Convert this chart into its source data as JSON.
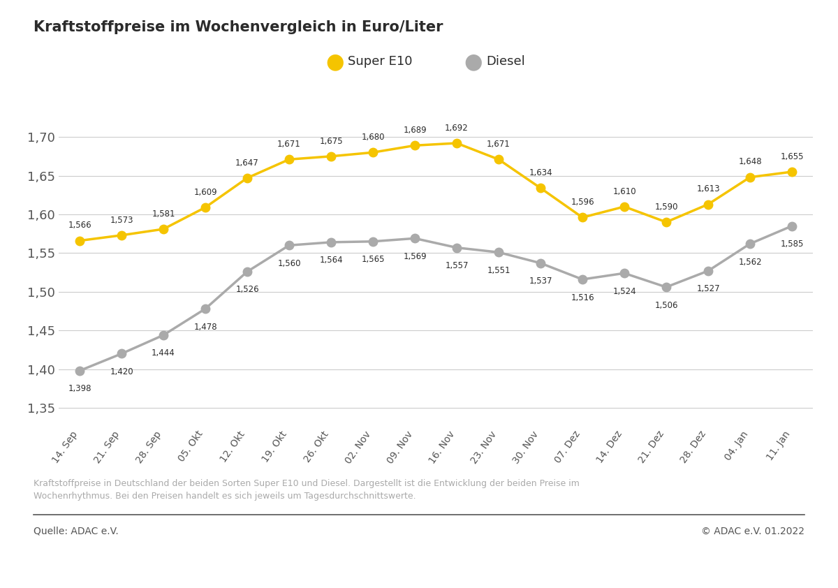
{
  "title": "Kraftstoffpreise im Wochenvergleich in Euro/Liter",
  "x_labels": [
    "14. Sep",
    "21. Sep",
    "28. Sep",
    "05. Okt",
    "12. Okt",
    "19. Okt",
    "26. Okt",
    "02. Nov",
    "09. Nov",
    "16. Nov",
    "23. Nov",
    "30. Nov",
    "07. Dez",
    "14. Dez",
    "21. Dez",
    "28. Dez",
    "04. Jan",
    "11. Jan"
  ],
  "super_e10": [
    1.566,
    1.573,
    1.581,
    1.609,
    1.647,
    1.671,
    1.675,
    1.68,
    1.689,
    1.692,
    1.671,
    1.634,
    1.596,
    1.61,
    1.59,
    1.613,
    1.648,
    1.655
  ],
  "diesel": [
    1.398,
    1.42,
    1.444,
    1.478,
    1.526,
    1.56,
    1.564,
    1.565,
    1.569,
    1.557,
    1.551,
    1.537,
    1.516,
    1.524,
    1.506,
    1.527,
    1.562,
    1.585
  ],
  "super_e10_color": "#F5C400",
  "diesel_color": "#aaaaaa",
  "line_width": 2.5,
  "marker_size": 9,
  "ylim": [
    1.33,
    1.725
  ],
  "yticks": [
    1.35,
    1.4,
    1.45,
    1.5,
    1.55,
    1.6,
    1.65,
    1.7
  ],
  "legend_super": "Super E10",
  "legend_diesel": "Diesel",
  "footnote": "Kraftstoffpreise in Deutschland der beiden Sorten Super E10 und Diesel. Dargestellt ist die Entwicklung der beiden Preise im\nWochenrhythmus. Bei den Preisen handelt es sich jeweils um Tagesdurchschnittswerte.",
  "source_left": "Quelle: ADAC e.V.",
  "source_right": "© ADAC e.V. 01.2022",
  "bg_color": "#ffffff",
  "grid_color": "#cccccc",
  "title_color": "#2b2b2b",
  "label_color": "#555555",
  "footnote_color": "#aaaaaa",
  "source_color": "#555555",
  "annotation_color": "#2b2b2b"
}
